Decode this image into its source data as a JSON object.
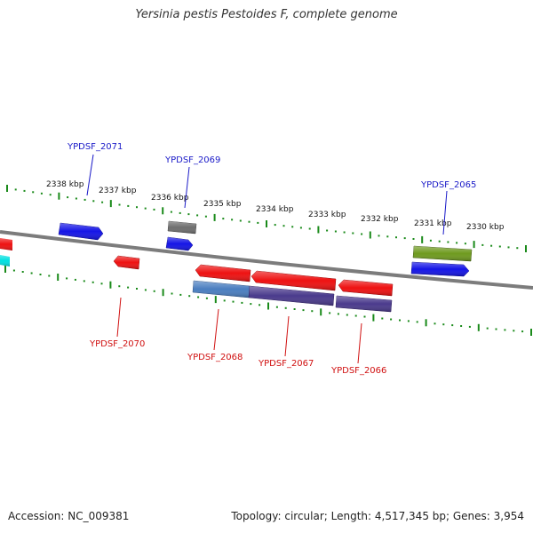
{
  "title": "Yersinia pestis Pestoides F, complete genome",
  "accession": "Accession: NC_009381",
  "summary": "Topology: circular; Length: 4,517,345 bp; Genes: 3,954",
  "colors": {
    "backbone": "#7c7c7c",
    "tick": "#1a8a1a",
    "forward_label": "#1a1ac8",
    "reverse_label": "#d01010",
    "red": "#ee1111",
    "blue": "#1414e6",
    "gray": "#6e6e6e",
    "cyan": "#00e0e0",
    "olive": "#6e9a1e",
    "steelblue": "#4a7ec0",
    "purple": "#4a3a8c"
  },
  "kbp_labels": [
    "2338 kbp",
    "2337 kbp",
    "2336 kbp",
    "2335 kbp",
    "2334 kbp",
    "2333 kbp",
    "2332 kbp",
    "2331 kbp",
    "2330 kbp"
  ],
  "genes_top": [
    "YPDSF_2071",
    "YPDSF_2069",
    "YPDSF_2065"
  ],
  "genes_bottom": [
    "YPDSF_2070",
    "YPDSF_2068",
    "YPDSF_2067",
    "YPDSF_2066"
  ]
}
